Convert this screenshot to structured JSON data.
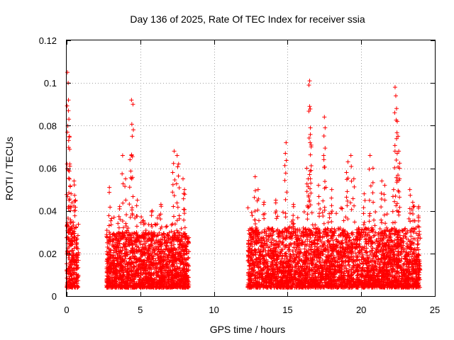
{
  "chart_data": {
    "type": "scatter",
    "title": "Day 136 of 2025, Rate Of TEC Index for receiver ssia",
    "xlabel": "GPS time / hours",
    "ylabel": "ROTI / TECUs",
    "xlim": [
      0,
      25
    ],
    "ylim": [
      0,
      0.12
    ],
    "xticks": [
      0,
      5,
      10,
      15,
      20,
      25
    ],
    "xtick_labels": [
      "0",
      "5",
      "10",
      "15",
      "20",
      "25"
    ],
    "yticks": [
      0,
      0.02,
      0.04,
      0.06,
      0.08,
      0.1,
      0.12
    ],
    "ytick_labels": [
      "0",
      "0.02",
      "0.04",
      "0.06",
      "0.08",
      "0.1",
      "0.12"
    ],
    "grid": true,
    "marker": "+",
    "color": "#ff0000",
    "series": [
      {
        "name": "ROTI",
        "segments": [
          {
            "x_range": [
              0.0,
              0.8
            ],
            "base_range": [
              0.004,
              0.035
            ],
            "spikes": [
              [
                0.05,
                0.105
              ],
              [
                0.1,
                0.1
              ],
              [
                0.12,
                0.092
              ],
              [
                0.15,
                0.083
              ],
              [
                0.18,
                0.075
              ],
              [
                0.22,
                0.061
              ],
              [
                0.3,
                0.048
              ],
              [
                0.5,
                0.054
              ],
              [
                0.6,
                0.045
              ]
            ]
          },
          {
            "x_range": [
              2.7,
              8.3
            ],
            "base_range": [
              0.004,
              0.03
            ],
            "spikes": [
              [
                2.9,
                0.051
              ],
              [
                3.6,
                0.042
              ],
              [
                3.8,
                0.066
              ],
              [
                4.0,
                0.055
              ],
              [
                4.4,
                0.092
              ],
              [
                4.5,
                0.09
              ],
              [
                4.45,
                0.075
              ],
              [
                4.3,
                0.064
              ],
              [
                4.8,
                0.045
              ],
              [
                5.8,
                0.04
              ],
              [
                6.4,
                0.043
              ],
              [
                7.3,
                0.068
              ],
              [
                7.5,
                0.066
              ],
              [
                7.6,
                0.062
              ],
              [
                7.2,
                0.058
              ],
              [
                7.9,
                0.055
              ],
              [
                8.0,
                0.05
              ]
            ]
          },
          {
            "x_range": [
              12.3,
              24.0
            ],
            "base_range": [
              0.004,
              0.032
            ],
            "spikes": [
              [
                12.8,
                0.056
              ],
              [
                13.0,
                0.05
              ],
              [
                13.4,
                0.044
              ],
              [
                14.2,
                0.045
              ],
              [
                14.9,
                0.072
              ],
              [
                14.85,
                0.067
              ],
              [
                15.4,
                0.043
              ],
              [
                16.3,
                0.06
              ],
              [
                16.5,
                0.101
              ],
              [
                16.45,
                0.099
              ],
              [
                16.5,
                0.089
              ],
              [
                16.55,
                0.079
              ],
              [
                16.6,
                0.07
              ],
              [
                16.4,
                0.055
              ],
              [
                17.1,
                0.052
              ],
              [
                17.5,
                0.084
              ],
              [
                17.55,
                0.079
              ],
              [
                17.45,
                0.066
              ],
              [
                18.0,
                0.05
              ],
              [
                19.0,
                0.058
              ],
              [
                19.3,
                0.066
              ],
              [
                19.1,
                0.063
              ],
              [
                19.5,
                0.055
              ],
              [
                20.2,
                0.048
              ],
              [
                20.6,
                0.066
              ],
              [
                20.8,
                0.06
              ],
              [
                21.4,
                0.054
              ],
              [
                21.6,
                0.052
              ],
              [
                22.3,
                0.098
              ],
              [
                22.35,
                0.094
              ],
              [
                22.4,
                0.088
              ],
              [
                22.45,
                0.082
              ],
              [
                22.5,
                0.075
              ],
              [
                22.55,
                0.068
              ],
              [
                22.6,
                0.06
              ],
              [
                22.2,
                0.05
              ],
              [
                23.3,
                0.05
              ],
              [
                23.5,
                0.044
              ],
              [
                23.9,
                0.042
              ]
            ]
          }
        ]
      }
    ]
  }
}
